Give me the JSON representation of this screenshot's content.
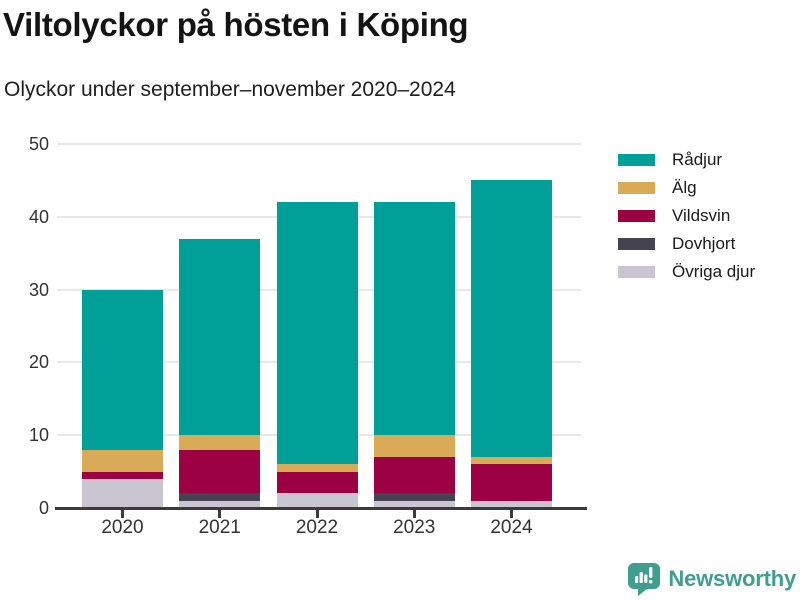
{
  "title": "Viltolyckor på hösten i Köping",
  "subtitle": "Olyckor under september–november 2020–2024",
  "footer": {
    "brand": "Newsworthy",
    "logo_icon": "speech-bubble-bar-chart-icon"
  },
  "colors": {
    "axis": "#3b3b3b",
    "grid": "#e8e8e8",
    "text": "#333333",
    "brand_teal": "#3f9e8d"
  },
  "chart_data": {
    "type": "bar",
    "stacked": true,
    "title": "Viltolyckor på hösten i Köping",
    "subtitle": "Olyckor under september–november 2020–2024",
    "categories": [
      "2020",
      "2021",
      "2022",
      "2023",
      "2024"
    ],
    "series": [
      {
        "name": "Rådjur",
        "color": "#00a099",
        "values": [
          22,
          27,
          36,
          32,
          38
        ]
      },
      {
        "name": "Älg",
        "color": "#d9ab57",
        "values": [
          3,
          2,
          1,
          3,
          1
        ]
      },
      {
        "name": "Vildsvin",
        "color": "#9b0143",
        "values": [
          1,
          6,
          3,
          5,
          5
        ]
      },
      {
        "name": "Dovhjort",
        "color": "#454352",
        "values": [
          0,
          1,
          0,
          1,
          0
        ]
      },
      {
        "name": "Övriga djur",
        "color": "#c9c6d2",
        "values": [
          4,
          1,
          2,
          1,
          1
        ]
      }
    ],
    "stack_order_bottom_to_top": [
      "Övriga djur",
      "Dovhjort",
      "Vildsvin",
      "Älg",
      "Rådjur"
    ],
    "xlabel": "",
    "ylabel": "",
    "ylim": [
      0,
      50
    ],
    "yticks": [
      0,
      10,
      20,
      30,
      40,
      50
    ],
    "grid": true,
    "legend_position": "right"
  }
}
